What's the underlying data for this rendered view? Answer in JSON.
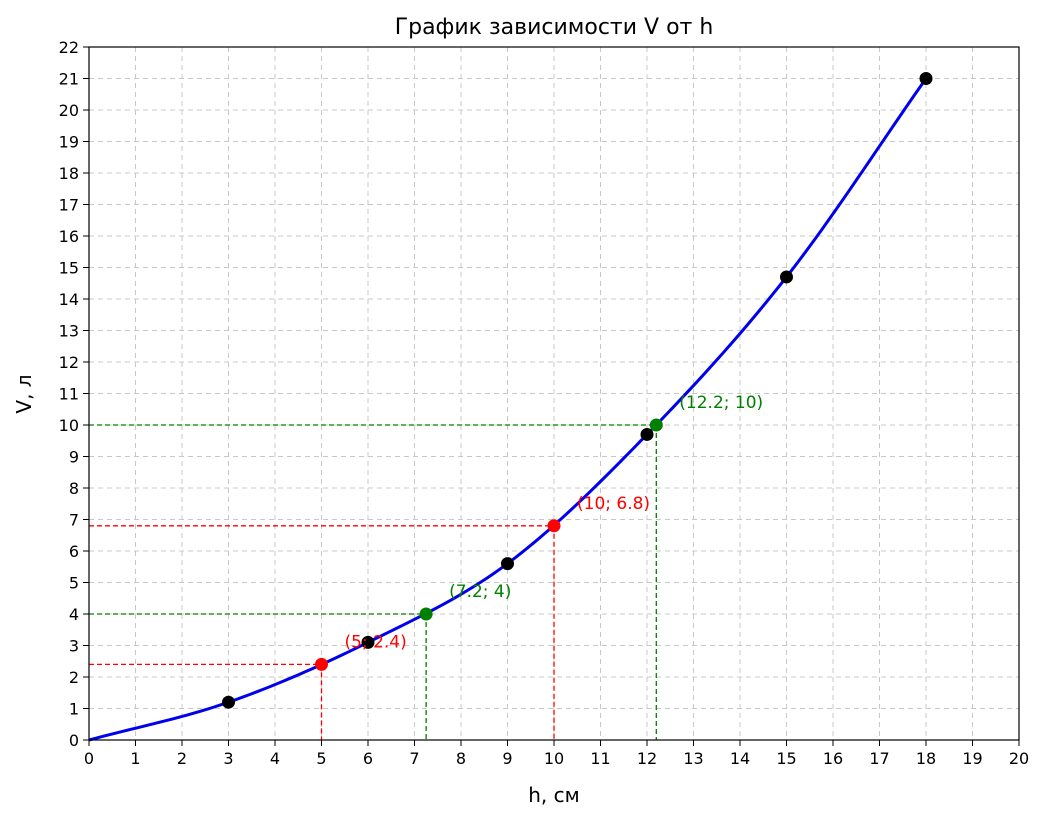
{
  "chart_data": {
    "type": "line",
    "title": "График зависимости V от h",
    "xlabel": "h, см",
    "ylabel": "V, л",
    "xlim": [
      0,
      20
    ],
    "ylim": [
      0,
      22
    ],
    "grid": true,
    "curve": {
      "name": "",
      "color": "#0000ee",
      "x": [
        0,
        3,
        6,
        9,
        12,
        15,
        18
      ],
      "y": [
        0,
        1.2,
        3.1,
        5.6,
        9.7,
        14.7,
        21
      ]
    },
    "measured_points": {
      "color": "#000000",
      "x": [
        3,
        6,
        9,
        12,
        15,
        18
      ],
      "y": [
        1.2,
        3.1,
        5.6,
        9.7,
        14.7,
        21
      ]
    },
    "highlight_points": [
      {
        "x": 5,
        "y": 2.4,
        "label": "(5; 2.4)",
        "color": "#ff0000"
      },
      {
        "x": 10,
        "y": 6.8,
        "label": "(10; 6.8)",
        "color": "#ff0000"
      },
      {
        "x": 7.25,
        "y": 4,
        "label": "(7.2; 4)",
        "color": "#008000"
      },
      {
        "x": 12.2,
        "y": 10,
        "label": "(12.2; 10)",
        "color": "#008000"
      }
    ],
    "x_ticks": [
      "0",
      "1",
      "2",
      "3",
      "4",
      "5",
      "6",
      "7",
      "8",
      "9",
      "10",
      "11",
      "12",
      "13",
      "14",
      "15",
      "16",
      "17",
      "18",
      "19",
      "20"
    ],
    "y_ticks": [
      "0",
      "1",
      "2",
      "3",
      "4",
      "5",
      "6",
      "7",
      "8",
      "9",
      "10",
      "11",
      "12",
      "13",
      "14",
      "15",
      "16",
      "17",
      "18",
      "19",
      "20",
      "21",
      "22"
    ]
  }
}
